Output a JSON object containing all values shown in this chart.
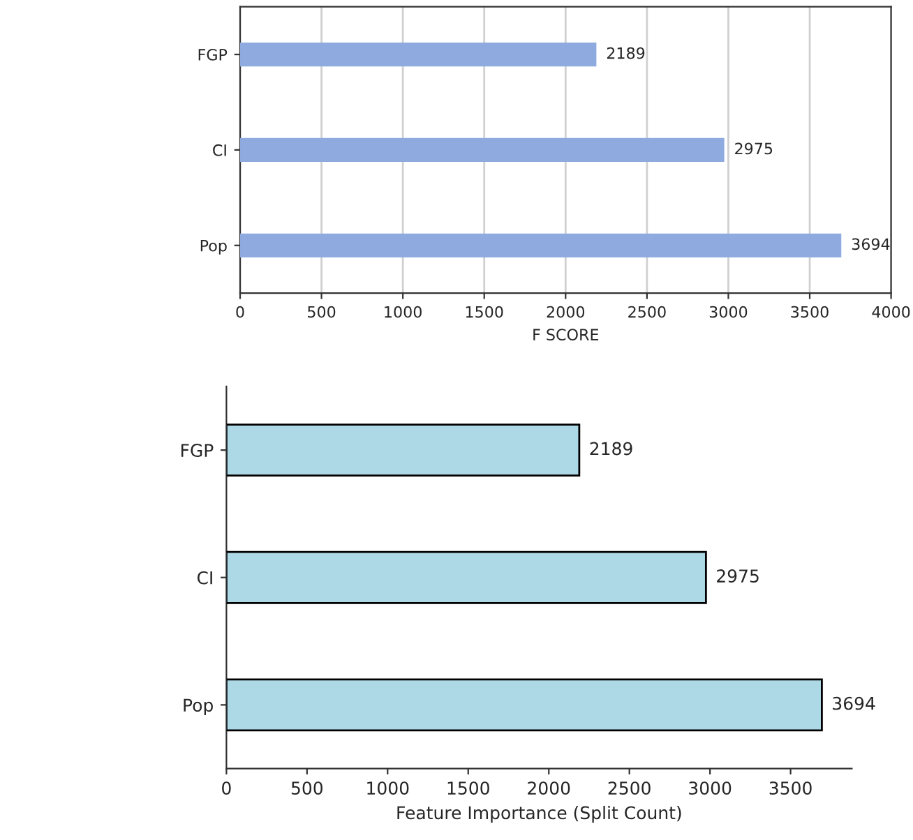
{
  "chart_data": [
    {
      "type": "bar",
      "orientation": "horizontal",
      "categories": [
        "FGP",
        "CI",
        "Pop"
      ],
      "values": [
        2189,
        2975,
        3694
      ],
      "color": "#8eaadf",
      "data_labels": true,
      "xlabel": "F SCORE",
      "xlim": [
        0,
        4000
      ],
      "xticks": [
        0,
        500,
        1000,
        1500,
        2000,
        2500,
        3000,
        3500,
        4000
      ],
      "grid": "x"
    },
    {
      "type": "bar",
      "orientation": "horizontal",
      "categories": [
        "FGP",
        "CI",
        "Pop"
      ],
      "values": [
        2189,
        2975,
        3694
      ],
      "color": "#add8e6",
      "data_labels": true,
      "xlabel": "Feature Importance (Split Count)",
      "xlim": [
        0,
        3880
      ],
      "xticks": [
        0,
        500,
        1000,
        1500,
        2000,
        2500,
        3000,
        3500
      ],
      "grid": false
    }
  ]
}
